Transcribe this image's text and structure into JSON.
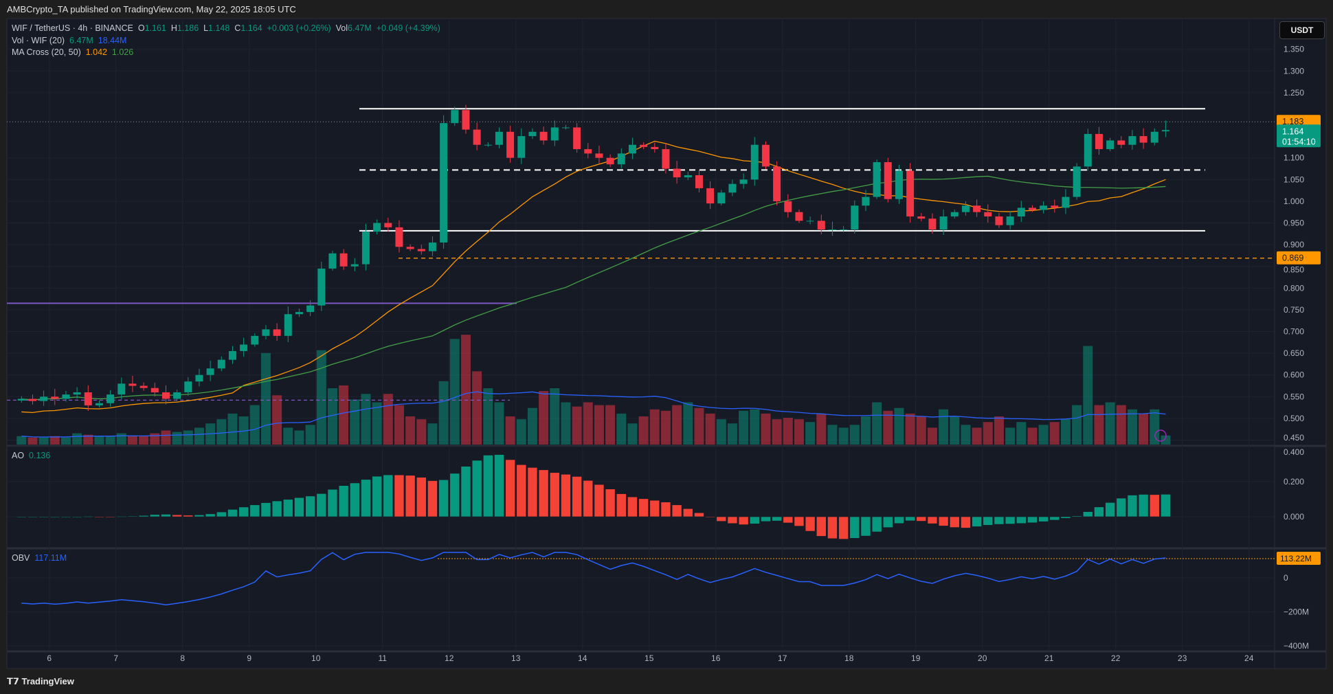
{
  "header": {
    "published": "AMBCrypto_TA published on TradingView.com, May 22, 2025 18:05 UTC"
  },
  "legend": {
    "symbol": "WIF / TetherUS · 4h · BINANCE",
    "o_label": "O",
    "o": "1.161",
    "h_label": "H",
    "h": "1.186",
    "l_label": "L",
    "l": "1.148",
    "c_label": "C",
    "c": "1.164",
    "change": "+0.003 (+0.26%)",
    "vol_label": "Vol",
    "vol": "6.47M",
    "vol_change": "+0.049 (+4.39%)",
    "volume_ind": "Vol · WIF (20)",
    "volume_val": "6.47M",
    "volume_ma": "18.44M",
    "ma_cross": "MA Cross (20, 50)",
    "ma20": "1.042",
    "ma50": "1.026",
    "ao_label": "AO",
    "ao_val": "0.136",
    "obv_label": "OBV",
    "obv_val": "117.11M"
  },
  "currency_button": "USDT",
  "footer": {
    "logo": "TradingView"
  },
  "colors": {
    "up": "#089981",
    "down": "#f23645",
    "ma20": "#ff9800",
    "ma50": "#43a047",
    "vol_ma": "#2962ff",
    "obv": "#2962ff",
    "level": "#ffffff",
    "support": "#ff9800",
    "purple": "#7e57c2"
  },
  "chart_data": {
    "type": "candlestick",
    "x_ticks": [
      "6",
      "7",
      "8",
      "9",
      "10",
      "11",
      "12",
      "13",
      "14",
      "15",
      "16",
      "17",
      "18",
      "19",
      "20",
      "21",
      "22",
      "23",
      "24"
    ],
    "start_day": 5.5,
    "candle_hours": 4,
    "close": [
      0.545,
      0.54,
      0.55,
      0.545,
      0.555,
      0.56,
      0.53,
      0.535,
      0.555,
      0.58,
      0.575,
      0.57,
      0.56,
      0.545,
      0.56,
      0.585,
      0.6,
      0.615,
      0.635,
      0.655,
      0.67,
      0.69,
      0.705,
      0.69,
      0.74,
      0.745,
      0.76,
      0.845,
      0.88,
      0.85,
      0.855,
      0.93,
      0.95,
      0.94,
      0.895,
      0.89,
      0.885,
      0.905,
      1.18,
      1.21,
      1.165,
      1.13,
      1.13,
      1.16,
      1.1,
      1.15,
      1.16,
      1.14,
      1.17,
      1.17,
      1.12,
      1.11,
      1.1,
      1.085,
      1.11,
      1.13,
      1.125,
      1.12,
      1.075,
      1.055,
      1.06,
      1.03,
      0.995,
      1.02,
      1.04,
      1.05,
      1.13,
      1.08,
      1.0,
      0.975,
      0.955,
      0.955,
      0.935,
      0.935,
      0.935,
      0.99,
      1.01,
      1.09,
      1.005,
      1.07,
      0.965,
      0.96,
      0.935,
      0.965,
      0.975,
      0.99,
      0.975,
      0.965,
      0.945,
      0.965,
      0.985,
      0.98,
      0.99,
      0.985,
      1.01,
      1.08,
      1.155,
      1.12,
      1.14,
      1.13,
      1.15,
      1.135,
      1.16,
      1.164
    ],
    "volume_m": [
      6,
      5,
      5,
      6,
      5,
      8,
      7,
      6,
      6,
      8,
      6,
      6,
      8,
      10,
      9,
      10,
      12,
      15,
      18,
      22,
      20,
      28,
      65,
      35,
      12,
      10,
      14,
      67,
      40,
      42,
      32,
      36,
      30,
      36,
      28,
      20,
      18,
      15,
      45,
      75,
      78,
      52,
      40,
      30,
      20,
      18,
      26,
      38,
      40,
      30,
      27,
      30,
      28,
      28,
      22,
      15,
      20,
      25,
      24,
      28,
      30,
      26,
      22,
      18,
      15,
      24,
      25,
      22,
      18,
      19,
      18,
      16,
      22,
      14,
      12,
      14,
      20,
      30,
      24,
      26,
      22,
      20,
      12,
      25,
      20,
      14,
      12,
      16,
      20,
      12,
      16,
      12,
      14,
      16,
      18,
      28,
      70,
      28,
      30,
      28,
      25,
      22,
      25,
      6.47
    ],
    "price_axis": {
      "ticks": [
        "1.350",
        "1.300",
        "1.250",
        "1.100",
        "1.050",
        "1.000",
        "0.950",
        "0.900",
        "0.850",
        "0.800",
        "0.750",
        "0.700",
        "0.650",
        "0.600",
        "0.550",
        "0.500",
        "0.450"
      ],
      "range": [
        0.45,
        1.35
      ]
    },
    "levels": {
      "range_high": 1.213,
      "range_mid": 1.072,
      "range_low": 0.932,
      "support": 0.869,
      "purple_line": 0.765,
      "purple_dashed": 0.542,
      "high_dotted": 1.183
    },
    "price_labels": {
      "high": "1.183",
      "last": "1.164",
      "countdown": "01:54:10",
      "support": "0.869"
    },
    "ao_axis": [
      "0.400",
      "0.200",
      "0.000"
    ],
    "obv_axis": [
      "0",
      "−200M",
      "−400M"
    ],
    "obv_high_label": "113.22M"
  }
}
